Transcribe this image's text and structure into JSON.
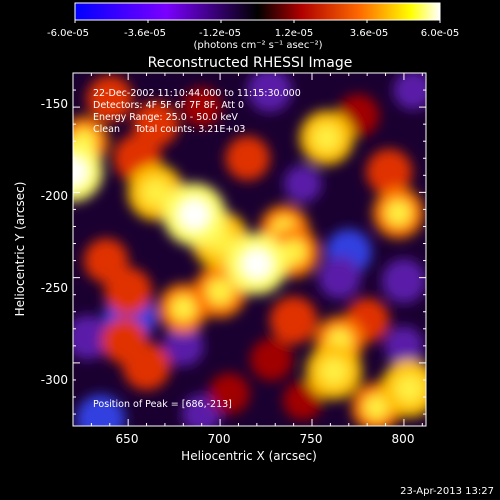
{
  "colorbar": {
    "ticks": [
      "-6.0e-05",
      "-3.6e-05",
      "-1.2e-05",
      "1.2e-05",
      "3.6e-05",
      "6.0e-05"
    ],
    "units": "(photons cm⁻² s⁻¹ asec⁻²)",
    "range": [
      -6e-05,
      6e-05
    ],
    "colormap": [
      "#0000ff",
      "#7a00ff",
      "#000000",
      "#b00000",
      "#ff6a00",
      "#ffff00",
      "#ffffff"
    ]
  },
  "chart_data": {
    "type": "heatmap",
    "title": "Reconstructed RHESSI Image",
    "xlabel": "Heliocentric X (arcsec)",
    "ylabel": "Heliocentric Y (arcsec)",
    "xlim": [
      620,
      812
    ],
    "ylim": [
      -337,
      -130
    ],
    "xticks": [
      "650",
      "700",
      "750",
      "800"
    ],
    "yticks": [
      "-150",
      "-200",
      "-250",
      "-300"
    ],
    "annotations": {
      "time": "22-Dec-2002 11:10:44.000 to 11:15:30.000",
      "detectors": "Detectors: 4F 5F 6F 7F 8F, Att 0",
      "energy": "Energy Range: 25.0 - 50.0 keV",
      "clean": "Clean     Total counts: 3.21E+03",
      "peak": "Position of Peak = [686,-213]"
    },
    "blobs": [
      {
        "x": 686,
        "y": -213,
        "v": 1.0
      },
      {
        "x": 665,
        "y": -200,
        "v": 0.8
      },
      {
        "x": 700,
        "y": -228,
        "v": 0.85
      },
      {
        "x": 720,
        "y": -242,
        "v": 0.95
      },
      {
        "x": 740,
        "y": -235,
        "v": 0.65
      },
      {
        "x": 735,
        "y": -222,
        "v": 0.6
      },
      {
        "x": 700,
        "y": -258,
        "v": 0.7
      },
      {
        "x": 680,
        "y": -268,
        "v": 0.6
      },
      {
        "x": 650,
        "y": -258,
        "v": 0.55
      },
      {
        "x": 638,
        "y": -240,
        "v": 0.45
      },
      {
        "x": 620,
        "y": -188,
        "v": 0.9
      },
      {
        "x": 626,
        "y": -170,
        "v": 0.6
      },
      {
        "x": 640,
        "y": -145,
        "v": 0.5
      },
      {
        "x": 665,
        "y": -160,
        "v": 0.5
      },
      {
        "x": 655,
        "y": -180,
        "v": 0.55
      },
      {
        "x": 758,
        "y": -168,
        "v": 0.75
      },
      {
        "x": 775,
        "y": -155,
        "v": 0.4
      },
      {
        "x": 792,
        "y": -188,
        "v": 0.5
      },
      {
        "x": 797,
        "y": -212,
        "v": 0.65
      },
      {
        "x": 803,
        "y": -315,
        "v": 0.85
      },
      {
        "x": 785,
        "y": -326,
        "v": 0.6
      },
      {
        "x": 762,
        "y": -305,
        "v": 0.8
      },
      {
        "x": 765,
        "y": -287,
        "v": 0.6
      },
      {
        "x": 780,
        "y": -275,
        "v": 0.45
      },
      {
        "x": 740,
        "y": -275,
        "v": 0.55
      },
      {
        "x": 728,
        "y": -298,
        "v": 0.4
      },
      {
        "x": 660,
        "y": -302,
        "v": 0.55
      },
      {
        "x": 648,
        "y": -287,
        "v": 0.5
      },
      {
        "x": 705,
        "y": -318,
        "v": 0.35
      },
      {
        "x": 745,
        "y": -322,
        "v": 0.3
      },
      {
        "x": 715,
        "y": -180,
        "v": 0.45
      },
      {
        "x": 690,
        "y": -150,
        "v": 0.3
      },
      {
        "x": 727,
        "y": -140,
        "v": -0.45
      },
      {
        "x": 770,
        "y": -235,
        "v": -0.5
      },
      {
        "x": 628,
        "y": -285,
        "v": -0.45
      },
      {
        "x": 651,
        "y": -273,
        "v": -0.7
      },
      {
        "x": 635,
        "y": -333,
        "v": -0.6
      },
      {
        "x": 765,
        "y": -250,
        "v": -0.4
      },
      {
        "x": 800,
        "y": -252,
        "v": -0.45
      },
      {
        "x": 690,
        "y": -330,
        "v": -0.3
      },
      {
        "x": 805,
        "y": -140,
        "v": -0.3
      },
      {
        "x": 680,
        "y": -290,
        "v": -0.35
      },
      {
        "x": 745,
        "y": -195,
        "v": -0.25
      },
      {
        "x": 800,
        "y": -290,
        "v": -0.3
      }
    ]
  },
  "footer": {
    "date": "23-Apr-2013 13:27"
  }
}
